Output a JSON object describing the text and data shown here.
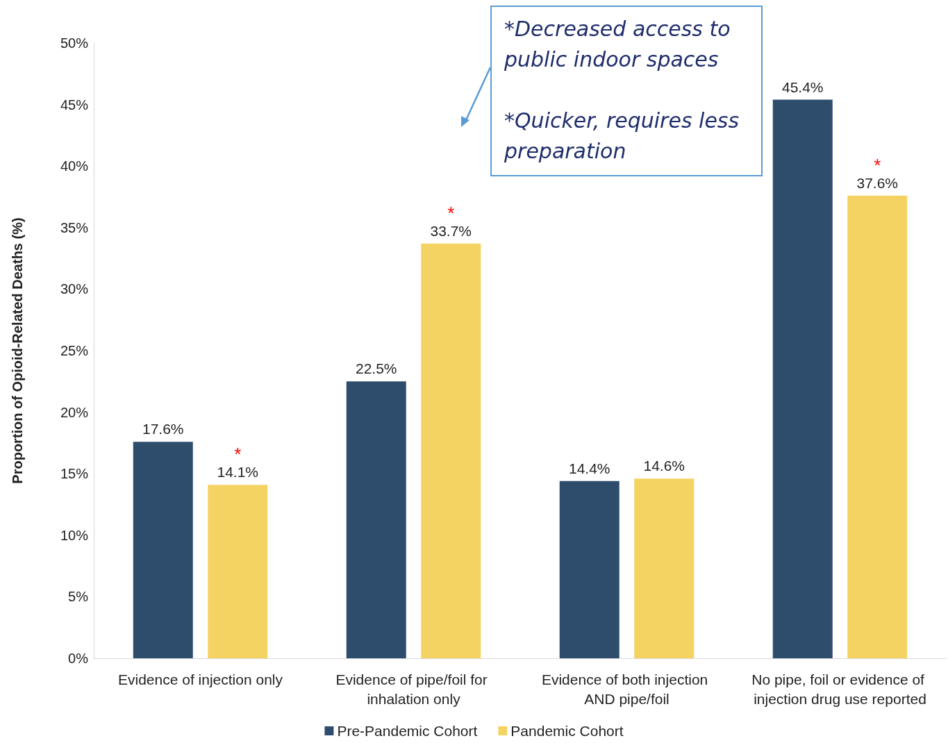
{
  "chart_data": {
    "type": "bar",
    "ylabel": "Proportion of Opioid-Related Deaths (%)",
    "categories": [
      "Evidence of injection only",
      "Evidence of pipe/foil for inhalation only",
      "Evidence of both injection AND pipe/foil",
      "No pipe, foil or evidence of injection drug use reported"
    ],
    "series": [
      {
        "name": "Pre-Pandemic Cohort",
        "color": "#2e4d6d",
        "values": [
          17.6,
          22.5,
          14.4,
          45.4
        ],
        "value_labels": [
          "17.6%",
          "22.5%",
          "14.4%",
          "45.4%"
        ]
      },
      {
        "name": "Pandemic Cohort",
        "color": "#f5d363",
        "values": [
          14.1,
          33.7,
          14.6,
          37.6
        ],
        "value_labels": [
          "*\n14.1%",
          "*\n33.7%",
          "14.6%",
          "*\n37.6%"
        ]
      }
    ],
    "ylim": [
      0,
      50
    ],
    "yticks": [
      {
        "value": 0,
        "label": "0%"
      },
      {
        "value": 5,
        "label": "5%"
      },
      {
        "value": 10,
        "label": "10%"
      },
      {
        "value": 15,
        "label": "15%"
      },
      {
        "value": 20,
        "label": "20%"
      },
      {
        "value": 25,
        "label": "25%"
      },
      {
        "value": 30,
        "label": "30%"
      },
      {
        "value": 35,
        "label": "35%"
      },
      {
        "value": 40,
        "label": "40%"
      },
      {
        "value": 45,
        "label": "45%"
      },
      {
        "value": 50,
        "label": "50%"
      }
    ],
    "annotations": [
      "*Decreased access to public indoor spaces",
      "*Quicker, requires less preparation"
    ],
    "grid": false,
    "legend": "bottom"
  }
}
